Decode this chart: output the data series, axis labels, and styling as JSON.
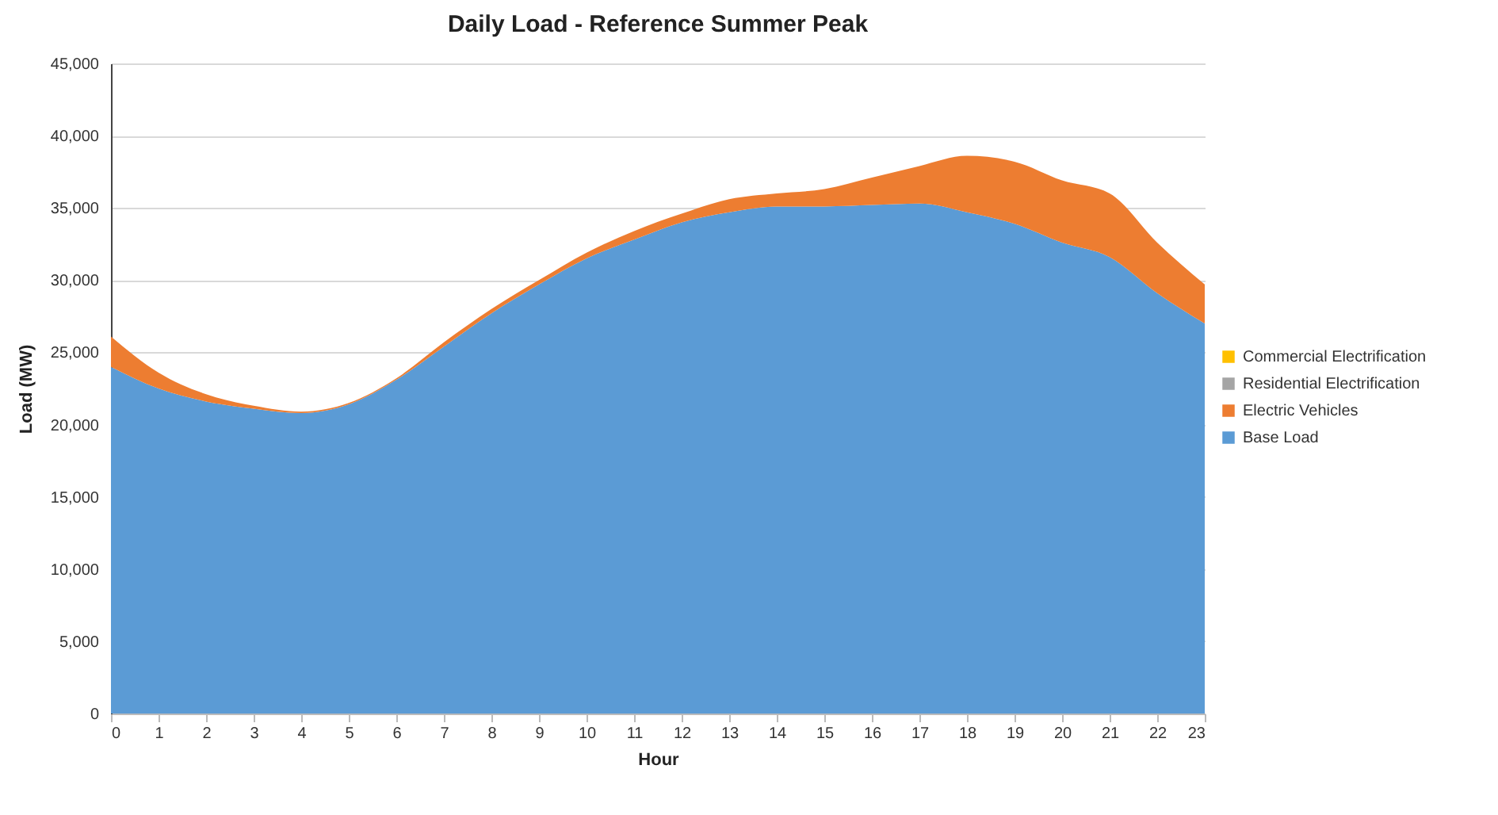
{
  "chart_data": {
    "type": "area",
    "title": "Daily Load - Reference Summer Peak",
    "xlabel": "Hour",
    "ylabel": "Load (MW)",
    "stacked": true,
    "legend": "right",
    "grid": "y",
    "x": [
      0,
      1,
      2,
      3,
      4,
      5,
      6,
      7,
      8,
      9,
      10,
      11,
      12,
      13,
      14,
      15,
      16,
      17,
      18,
      19,
      20,
      21,
      22,
      23
    ],
    "xlim": [
      0,
      23
    ],
    "xticks": [
      0,
      1,
      2,
      3,
      4,
      5,
      6,
      7,
      8,
      9,
      10,
      11,
      12,
      13,
      14,
      15,
      16,
      17,
      18,
      19,
      20,
      21,
      22,
      23
    ],
    "ylim": [
      0,
      45000
    ],
    "yticks": [
      {
        "value": 0,
        "label": "0"
      },
      {
        "value": 5000,
        "label": "5,000"
      },
      {
        "value": 10000,
        "label": "10,000"
      },
      {
        "value": 15000,
        "label": "15,000"
      },
      {
        "value": 20000,
        "label": "20,000"
      },
      {
        "value": 25000,
        "label": "25,000"
      },
      {
        "value": 30000,
        "label": "30,000"
      },
      {
        "value": 35000,
        "label": "35,000"
      },
      {
        "value": 40000,
        "label": "40,000"
      },
      {
        "value": 45000,
        "label": "45,000"
      }
    ],
    "series": [
      {
        "name": "Base Load",
        "color": "#5b9bd5",
        "values": [
          24000,
          22500,
          21600,
          21100,
          20800,
          21400,
          23100,
          25400,
          27700,
          29700,
          31500,
          32800,
          34000,
          34700,
          35100,
          35100,
          35200,
          35300,
          34700,
          33900,
          32600,
          31600,
          29100,
          27000
        ]
      },
      {
        "name": "Electric Vehicles",
        "color": "#ed7d31",
        "values": [
          2100,
          1100,
          500,
          200,
          100,
          100,
          100,
          300,
          300,
          300,
          400,
          600,
          600,
          900,
          900,
          1200,
          1900,
          2600,
          3900,
          4300,
          4300,
          4400,
          3500,
          2700
        ]
      },
      {
        "name": "Residential Electrification",
        "color": "#a5a5a5",
        "values": [
          null,
          null,
          null,
          null,
          null,
          null,
          null,
          null,
          null,
          null,
          null,
          null,
          null,
          null,
          null,
          null,
          null,
          null,
          null,
          null,
          null,
          null,
          null,
          null
        ]
      },
      {
        "name": "Commercial Electrification",
        "color": "#ffc000",
        "values": [
          null,
          null,
          null,
          null,
          null,
          null,
          null,
          null,
          null,
          null,
          null,
          null,
          null,
          null,
          null,
          null,
          null,
          null,
          null,
          null,
          null,
          null,
          null,
          null
        ]
      }
    ]
  }
}
